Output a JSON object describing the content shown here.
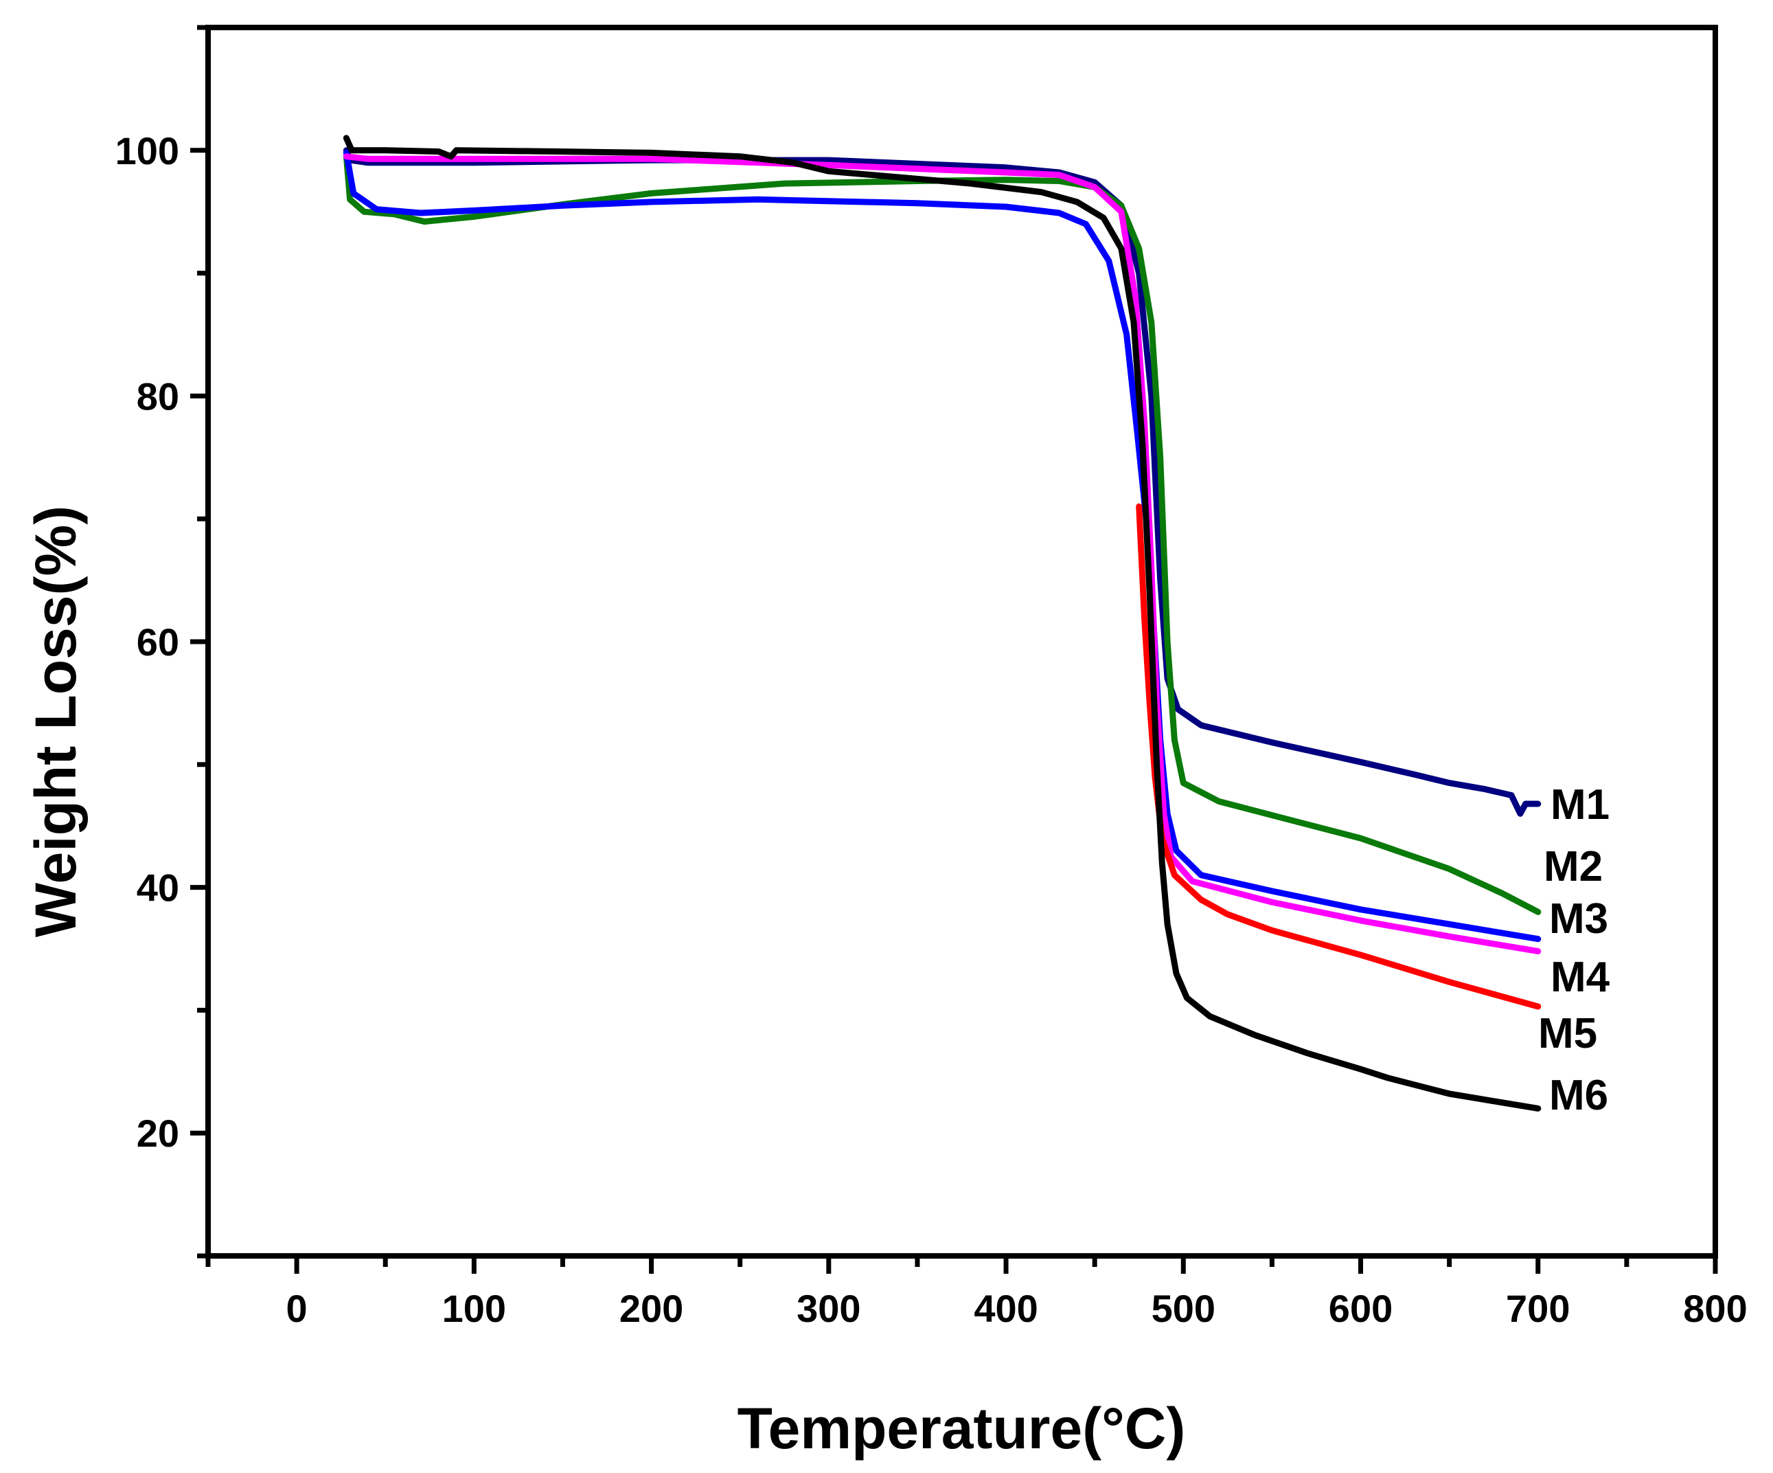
{
  "chart_data": {
    "type": "line",
    "xlabel": "Temperature(°C)",
    "ylabel": "Weight Loss(%)",
    "xlim": [
      -50,
      800
    ],
    "ylim": [
      10,
      110
    ],
    "x_ticks": [
      0,
      100,
      200,
      300,
      400,
      500,
      600,
      700,
      800
    ],
    "y_ticks": [
      20,
      40,
      60,
      80,
      100
    ],
    "grid": false,
    "series": [
      {
        "name": "M1",
        "color": "#000080",
        "points": [
          [
            28,
            100
          ],
          [
            30,
            99.2
          ],
          [
            40,
            99
          ],
          [
            100,
            99
          ],
          [
            200,
            99.2
          ],
          [
            300,
            99.2
          ],
          [
            400,
            98.6
          ],
          [
            430,
            98.2
          ],
          [
            450,
            97.4
          ],
          [
            465,
            95.5
          ],
          [
            475,
            90
          ],
          [
            482,
            80
          ],
          [
            487,
            65
          ],
          [
            491,
            57
          ],
          [
            497,
            54.5
          ],
          [
            510,
            53.2
          ],
          [
            550,
            51.8
          ],
          [
            600,
            50.2
          ],
          [
            630,
            49.2
          ],
          [
            650,
            48.5
          ],
          [
            670,
            48
          ],
          [
            685,
            47.5
          ],
          [
            690,
            46
          ],
          [
            693,
            46.8
          ],
          [
            700,
            46.8
          ]
        ]
      },
      {
        "name": "M2",
        "color": "#0a7a0a",
        "points": [
          [
            28,
            99.5
          ],
          [
            30,
            96
          ],
          [
            38,
            95
          ],
          [
            55,
            94.8
          ],
          [
            72,
            94.2
          ],
          [
            100,
            94.6
          ],
          [
            150,
            95.6
          ],
          [
            200,
            96.5
          ],
          [
            275,
            97.3
          ],
          [
            350,
            97.5
          ],
          [
            400,
            97.6
          ],
          [
            430,
            97.5
          ],
          [
            450,
            97
          ],
          [
            465,
            95.5
          ],
          [
            475,
            92
          ],
          [
            482,
            86
          ],
          [
            487,
            75
          ],
          [
            491,
            60
          ],
          [
            495,
            52
          ],
          [
            500,
            48.5
          ],
          [
            520,
            47
          ],
          [
            560,
            45.5
          ],
          [
            600,
            44
          ],
          [
            650,
            41.5
          ],
          [
            680,
            39.5
          ],
          [
            700,
            38
          ]
        ]
      },
      {
        "name": "M3",
        "color": "#0000ff",
        "points": [
          [
            28,
            99.8
          ],
          [
            32,
            96.5
          ],
          [
            45,
            95.2
          ],
          [
            70,
            94.9
          ],
          [
            100,
            95.1
          ],
          [
            150,
            95.5
          ],
          [
            200,
            95.8
          ],
          [
            260,
            96
          ],
          [
            350,
            95.7
          ],
          [
            400,
            95.4
          ],
          [
            430,
            94.9
          ],
          [
            445,
            94
          ],
          [
            458,
            91
          ],
          [
            468,
            85
          ],
          [
            474,
            77
          ],
          [
            479,
            70
          ],
          [
            483,
            62
          ],
          [
            487,
            52
          ],
          [
            491,
            46
          ],
          [
            496,
            43
          ],
          [
            510,
            41
          ],
          [
            550,
            39.7
          ],
          [
            600,
            38.2
          ],
          [
            650,
            37
          ],
          [
            700,
            35.8
          ]
        ]
      },
      {
        "name": "M4",
        "color": "#ff00ff",
        "points": [
          [
            28,
            99.5
          ],
          [
            40,
            99.3
          ],
          [
            100,
            99.3
          ],
          [
            200,
            99.3
          ],
          [
            300,
            98.8
          ],
          [
            400,
            98.2
          ],
          [
            430,
            98
          ],
          [
            450,
            97
          ],
          [
            465,
            95
          ],
          [
            473,
            88
          ],
          [
            478,
            78
          ],
          [
            482,
            66
          ],
          [
            485,
            55
          ],
          [
            489,
            46
          ],
          [
            493,
            42.5
          ],
          [
            505,
            40.5
          ],
          [
            550,
            38.8
          ],
          [
            600,
            37.3
          ],
          [
            650,
            36
          ],
          [
            700,
            34.8
          ]
        ]
      },
      {
        "name": "M5",
        "color": "#ff0000",
        "points": [
          [
            475,
            71
          ],
          [
            478,
            62
          ],
          [
            481,
            55
          ],
          [
            484,
            49
          ],
          [
            488,
            44
          ],
          [
            495,
            41
          ],
          [
            510,
            39
          ],
          [
            525,
            37.8
          ],
          [
            550,
            36.5
          ],
          [
            600,
            34.5
          ],
          [
            650,
            32.3
          ],
          [
            700,
            30.3
          ]
        ]
      },
      {
        "name": "M6",
        "color": "#000000",
        "points": [
          [
            28,
            101
          ],
          [
            31,
            100
          ],
          [
            50,
            100
          ],
          [
            80,
            99.9
          ],
          [
            87,
            99.5
          ],
          [
            90,
            100
          ],
          [
            150,
            99.9
          ],
          [
            200,
            99.8
          ],
          [
            250,
            99.5
          ],
          [
            280,
            99
          ],
          [
            300,
            98.3
          ],
          [
            340,
            97.8
          ],
          [
            380,
            97.3
          ],
          [
            420,
            96.6
          ],
          [
            440,
            95.8
          ],
          [
            455,
            94.5
          ],
          [
            465,
            92
          ],
          [
            472,
            86
          ],
          [
            477,
            76
          ],
          [
            481,
            64
          ],
          [
            485,
            50
          ],
          [
            488,
            42
          ],
          [
            491,
            37
          ],
          [
            496,
            33
          ],
          [
            502,
            31
          ],
          [
            515,
            29.5
          ],
          [
            540,
            28
          ],
          [
            570,
            26.5
          ],
          [
            600,
            25.2
          ],
          [
            615,
            24.5
          ],
          [
            650,
            23.2
          ],
          [
            700,
            22
          ]
        ]
      }
    ],
    "series_labels": [
      "M1",
      "M2",
      "M3",
      "M4",
      "M5",
      "M6"
    ]
  }
}
